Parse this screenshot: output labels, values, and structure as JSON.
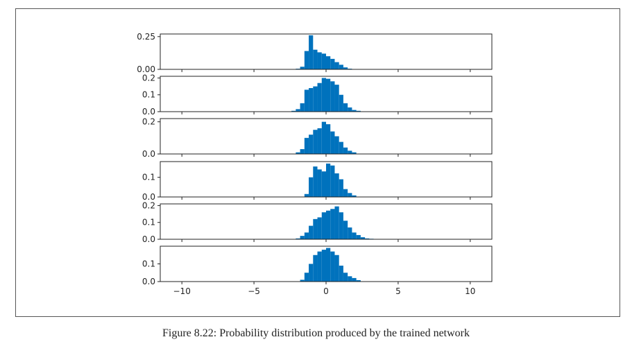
{
  "caption": "Figure 8.22: Probability distribution produced by the trained network",
  "colors": {
    "bar": "#0072bd",
    "axis": "#222222"
  },
  "chart_data": {
    "type": "bar",
    "xlim": [
      -11.5,
      11.5
    ],
    "x_ticks": [
      -10,
      -5,
      0,
      5,
      10
    ],
    "x_tick_labels": [
      "−10",
      "−5",
      "0",
      "5",
      "10"
    ],
    "bin_width": 0.3,
    "panels": [
      {
        "ylim": [
          0,
          0.27
        ],
        "y_ticks": [
          0,
          0.25
        ],
        "y_tick_labels": [
          "0.00",
          "0.25"
        ],
        "bins": [
          {
            "x": -1.95,
            "y": 0.005
          },
          {
            "x": -1.65,
            "y": 0.02
          },
          {
            "x": -1.35,
            "y": 0.14
          },
          {
            "x": -1.05,
            "y": 0.26
          },
          {
            "x": -0.75,
            "y": 0.15
          },
          {
            "x": -0.45,
            "y": 0.13
          },
          {
            "x": -0.15,
            "y": 0.12
          },
          {
            "x": 0.15,
            "y": 0.1
          },
          {
            "x": 0.45,
            "y": 0.08
          },
          {
            "x": 0.75,
            "y": 0.055
          },
          {
            "x": 1.05,
            "y": 0.035
          },
          {
            "x": 1.35,
            "y": 0.015
          },
          {
            "x": 1.65,
            "y": 0.005
          }
        ]
      },
      {
        "ylim": [
          0,
          0.21
        ],
        "y_ticks": [
          0,
          0.1,
          0.2
        ],
        "y_tick_labels": [
          "0.0",
          "0.1",
          "0.2"
        ],
        "bins": [
          {
            "x": -2.25,
            "y": 0.005
          },
          {
            "x": -1.95,
            "y": 0.015
          },
          {
            "x": -1.65,
            "y": 0.05
          },
          {
            "x": -1.35,
            "y": 0.13
          },
          {
            "x": -1.05,
            "y": 0.14
          },
          {
            "x": -0.75,
            "y": 0.15
          },
          {
            "x": -0.45,
            "y": 0.17
          },
          {
            "x": -0.15,
            "y": 0.2
          },
          {
            "x": 0.15,
            "y": 0.195
          },
          {
            "x": 0.45,
            "y": 0.18
          },
          {
            "x": 0.75,
            "y": 0.16
          },
          {
            "x": 1.05,
            "y": 0.1
          },
          {
            "x": 1.35,
            "y": 0.05
          },
          {
            "x": 1.65,
            "y": 0.025
          },
          {
            "x": 1.95,
            "y": 0.01
          },
          {
            "x": 2.25,
            "y": 0.005
          }
        ]
      },
      {
        "ylim": [
          0,
          0.22
        ],
        "y_ticks": [
          0,
          0.2
        ],
        "y_tick_labels": [
          "0.0",
          "0.2"
        ],
        "bins": [
          {
            "x": -1.95,
            "y": 0.01
          },
          {
            "x": -1.65,
            "y": 0.03
          },
          {
            "x": -1.35,
            "y": 0.1
          },
          {
            "x": -1.05,
            "y": 0.12
          },
          {
            "x": -0.75,
            "y": 0.15
          },
          {
            "x": -0.45,
            "y": 0.16
          },
          {
            "x": -0.15,
            "y": 0.2
          },
          {
            "x": 0.15,
            "y": 0.185
          },
          {
            "x": 0.45,
            "y": 0.14
          },
          {
            "x": 0.75,
            "y": 0.11
          },
          {
            "x": 1.05,
            "y": 0.075
          },
          {
            "x": 1.35,
            "y": 0.04
          },
          {
            "x": 1.65,
            "y": 0.02
          },
          {
            "x": 1.95,
            "y": 0.01
          }
        ]
      },
      {
        "ylim": [
          0,
          0.18
        ],
        "y_ticks": [
          0,
          0.1
        ],
        "y_tick_labels": [
          "0.0",
          "0.1"
        ],
        "bins": [
          {
            "x": -1.35,
            "y": 0.015
          },
          {
            "x": -1.05,
            "y": 0.1
          },
          {
            "x": -0.75,
            "y": 0.155
          },
          {
            "x": -0.45,
            "y": 0.14
          },
          {
            "x": -0.15,
            "y": 0.13
          },
          {
            "x": 0.15,
            "y": 0.17
          },
          {
            "x": 0.45,
            "y": 0.16
          },
          {
            "x": 0.75,
            "y": 0.12
          },
          {
            "x": 1.05,
            "y": 0.09
          },
          {
            "x": 1.35,
            "y": 0.04
          },
          {
            "x": 1.65,
            "y": 0.02
          },
          {
            "x": 1.95,
            "y": 0.008
          }
        ]
      },
      {
        "ylim": [
          0,
          0.21
        ],
        "y_ticks": [
          0,
          0.1,
          0.2
        ],
        "y_tick_labels": [
          "0.0",
          "0.1",
          "0.2"
        ],
        "bins": [
          {
            "x": -1.95,
            "y": 0.005
          },
          {
            "x": -1.65,
            "y": 0.02
          },
          {
            "x": -1.35,
            "y": 0.04
          },
          {
            "x": -1.05,
            "y": 0.08
          },
          {
            "x": -0.75,
            "y": 0.12
          },
          {
            "x": -0.45,
            "y": 0.13
          },
          {
            "x": -0.15,
            "y": 0.16
          },
          {
            "x": 0.15,
            "y": 0.17
          },
          {
            "x": 0.45,
            "y": 0.18
          },
          {
            "x": 0.75,
            "y": 0.195
          },
          {
            "x": 1.05,
            "y": 0.16
          },
          {
            "x": 1.35,
            "y": 0.11
          },
          {
            "x": 1.65,
            "y": 0.07
          },
          {
            "x": 1.95,
            "y": 0.04
          },
          {
            "x": 2.25,
            "y": 0.025
          },
          {
            "x": 2.55,
            "y": 0.012
          },
          {
            "x": 2.85,
            "y": 0.005
          },
          {
            "x": 3.15,
            "y": 0.003
          }
        ]
      },
      {
        "ylim": [
          0,
          0.2
        ],
        "y_ticks": [
          0,
          0.1
        ],
        "y_tick_labels": [
          "0.0",
          "0.1"
        ],
        "bins": [
          {
            "x": -1.65,
            "y": 0.01
          },
          {
            "x": -1.35,
            "y": 0.05
          },
          {
            "x": -1.05,
            "y": 0.1
          },
          {
            "x": -0.75,
            "y": 0.15
          },
          {
            "x": -0.45,
            "y": 0.17
          },
          {
            "x": -0.15,
            "y": 0.18
          },
          {
            "x": 0.15,
            "y": 0.19
          },
          {
            "x": 0.45,
            "y": 0.17
          },
          {
            "x": 0.75,
            "y": 0.15
          },
          {
            "x": 1.05,
            "y": 0.09
          },
          {
            "x": 1.35,
            "y": 0.05
          },
          {
            "x": 1.65,
            "y": 0.03
          },
          {
            "x": 1.95,
            "y": 0.02
          },
          {
            "x": 2.25,
            "y": 0.008
          }
        ]
      }
    ]
  }
}
